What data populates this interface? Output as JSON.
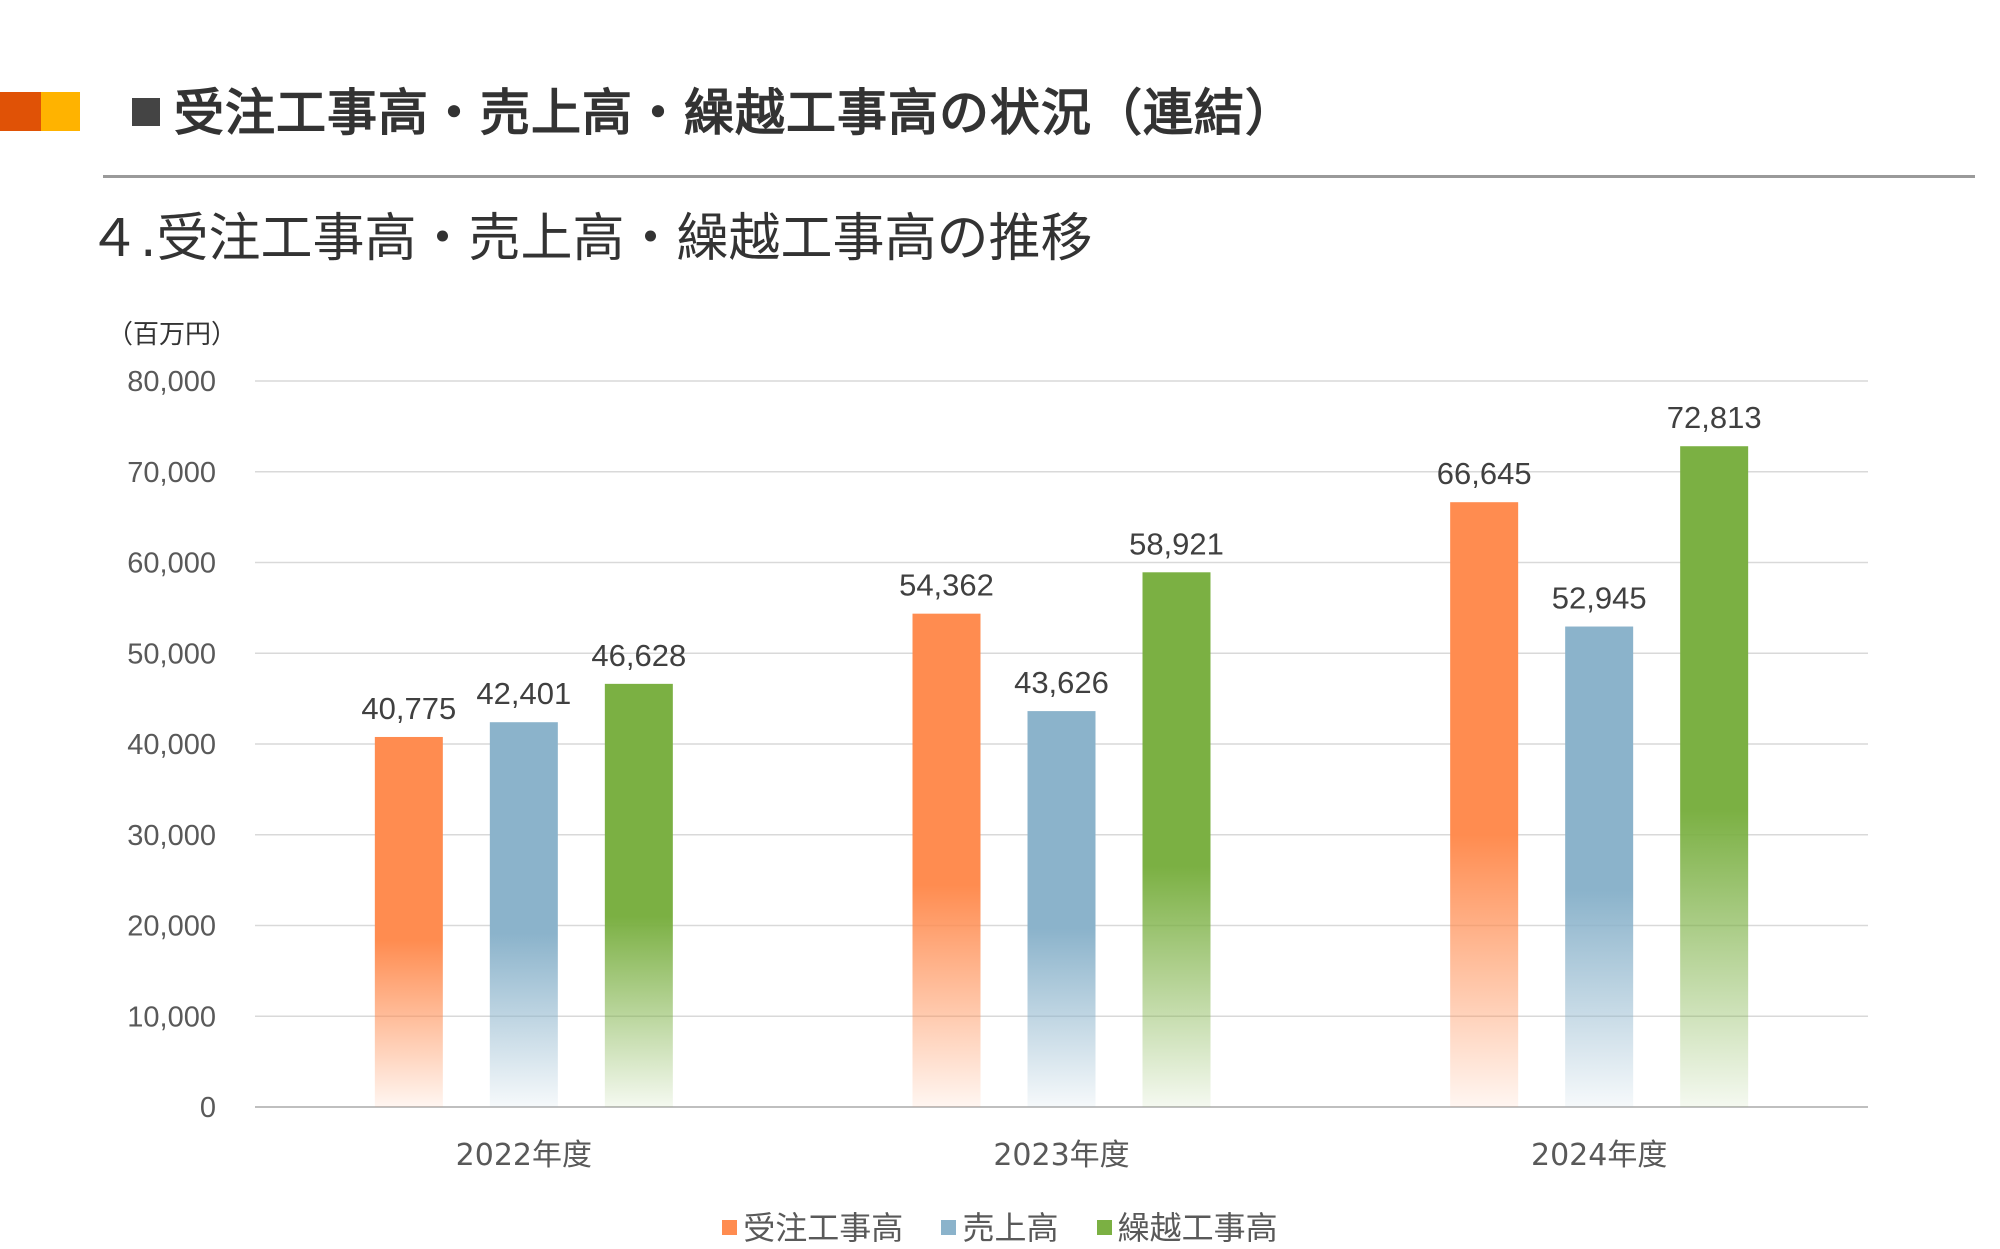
{
  "header": {
    "section_title": "受注工事高・売上高・繰越工事高の状況（連結）",
    "accent_colors": [
      "#e05206",
      "#ffb300"
    ]
  },
  "chart_heading": "４.受注工事高・売上高・繰越工事高の推移",
  "chart_data": {
    "type": "bar",
    "unit_label": "（百万円）",
    "categories": [
      "2022年度",
      "2023年度",
      "2024年度"
    ],
    "series": [
      {
        "name": "受注工事高",
        "values": [
          40775,
          54362,
          66645
        ],
        "color": "#ff8c50",
        "labels": [
          "40,775",
          "54,362",
          "66,645"
        ]
      },
      {
        "name": "売上高",
        "values": [
          42401,
          43626,
          52945
        ],
        "color": "#8bb3cb",
        "labels": [
          "42,401",
          "43,626",
          "52,945"
        ]
      },
      {
        "name": "繰越工事高",
        "values": [
          46628,
          58921,
          72813
        ],
        "color": "#7bb043",
        "labels": [
          "46,628",
          "58,921",
          "72,813"
        ]
      }
    ],
    "ylim": [
      0,
      80000
    ],
    "yticks": [
      "0",
      "10,000",
      "20,000",
      "30,000",
      "40,000",
      "50,000",
      "60,000",
      "70,000",
      "80,000"
    ],
    "grid": true,
    "legend_position": "bottom",
    "title": "",
    "xlabel": "",
    "ylabel": ""
  }
}
